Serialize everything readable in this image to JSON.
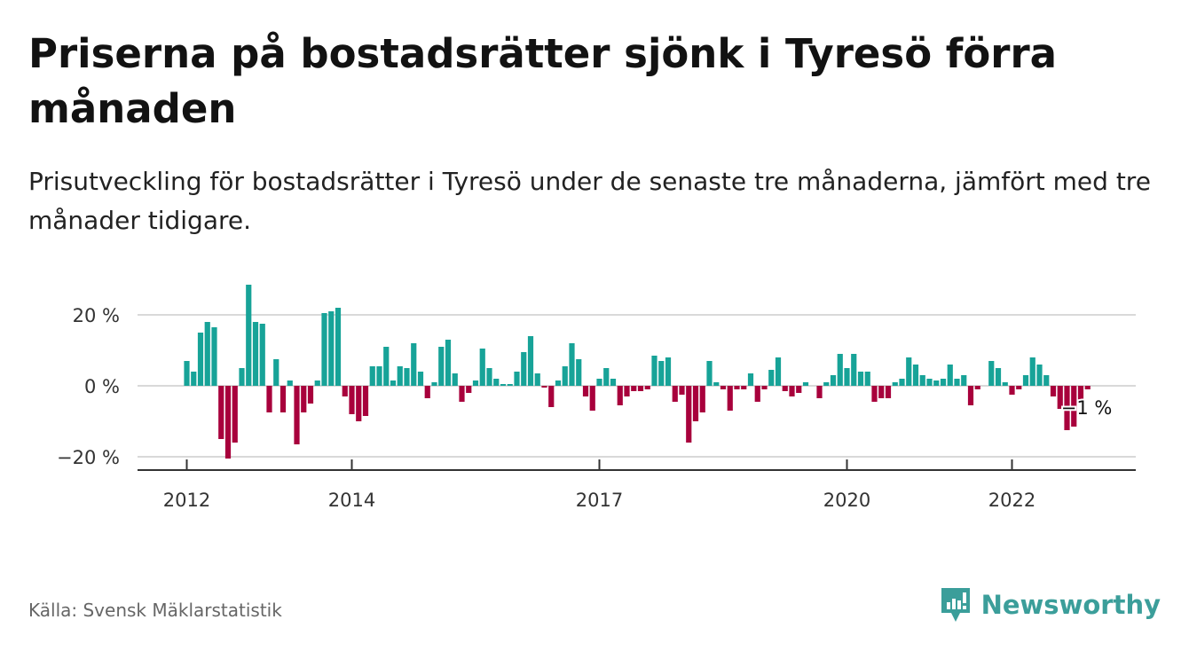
{
  "title": "Priserna på bostadsrätter sjönk i Tyresö förra månaden",
  "subtitle": "Prisutveckling för bostadsrätter i Tyresö under de senaste tre månaderna, jämfört med tre månader tidigare.",
  "source": "Källa: Svensk Mäklarstatistik",
  "brand": "Newsworthy",
  "colors": {
    "positive": "#17a398",
    "negative": "#a8003c",
    "brand": "#3b9e9a"
  },
  "chart_data": {
    "type": "bar",
    "ylim": [
      -24,
      30
    ],
    "yticks": [
      {
        "value": 20,
        "label": "20 %"
      },
      {
        "value": 0,
        "label": "0 %"
      },
      {
        "value": -20,
        "label": "−20 %"
      }
    ],
    "xticks": [
      {
        "index": 0,
        "label": "2012"
      },
      {
        "index": 24,
        "label": "2014"
      },
      {
        "index": 60,
        "label": "2017"
      },
      {
        "index": 96,
        "label": "2020"
      },
      {
        "index": 120,
        "label": "2022"
      }
    ],
    "end_label": "−1 %",
    "values": [
      7,
      4,
      15,
      18,
      16.5,
      -15,
      -20.5,
      -16,
      5,
      28.5,
      18,
      17.5,
      -7.5,
      7.5,
      -7.5,
      1.5,
      -16.5,
      -7.5,
      -5,
      1.5,
      20.5,
      21,
      22,
      -3,
      -8,
      -10,
      -8.5,
      5.5,
      5.5,
      11,
      1.5,
      5.5,
      5,
      12,
      4,
      -3.5,
      1,
      11,
      13,
      3.5,
      -4.5,
      -2,
      1.5,
      10.5,
      5,
      2,
      0.5,
      0.5,
      4,
      9.5,
      14,
      3.5,
      -0.5,
      -6,
      1.5,
      5.5,
      12,
      7.5,
      -3,
      -7,
      2,
      5,
      2,
      -5.5,
      -3,
      -1.5,
      -1.5,
      -1,
      8.5,
      7,
      8,
      -4.5,
      -2.5,
      -16,
      -10,
      -7.5,
      7,
      1,
      -1,
      -7,
      -1,
      -1,
      3.5,
      -4.5,
      -1,
      4.5,
      8,
      -1.5,
      -3,
      -2,
      1,
      0,
      -3.5,
      1,
      3,
      9,
      5,
      9,
      4,
      4,
      -4.5,
      -3.5,
      -3.5,
      1,
      2,
      8,
      6,
      3,
      2,
      1.5,
      2,
      6,
      2,
      3,
      -5.5,
      -1,
      0,
      7,
      5,
      1,
      -2.5,
      -1,
      3,
      8,
      6,
      3,
      -3,
      -6.5,
      -12.5,
      -11.5,
      -4,
      -1
    ]
  }
}
